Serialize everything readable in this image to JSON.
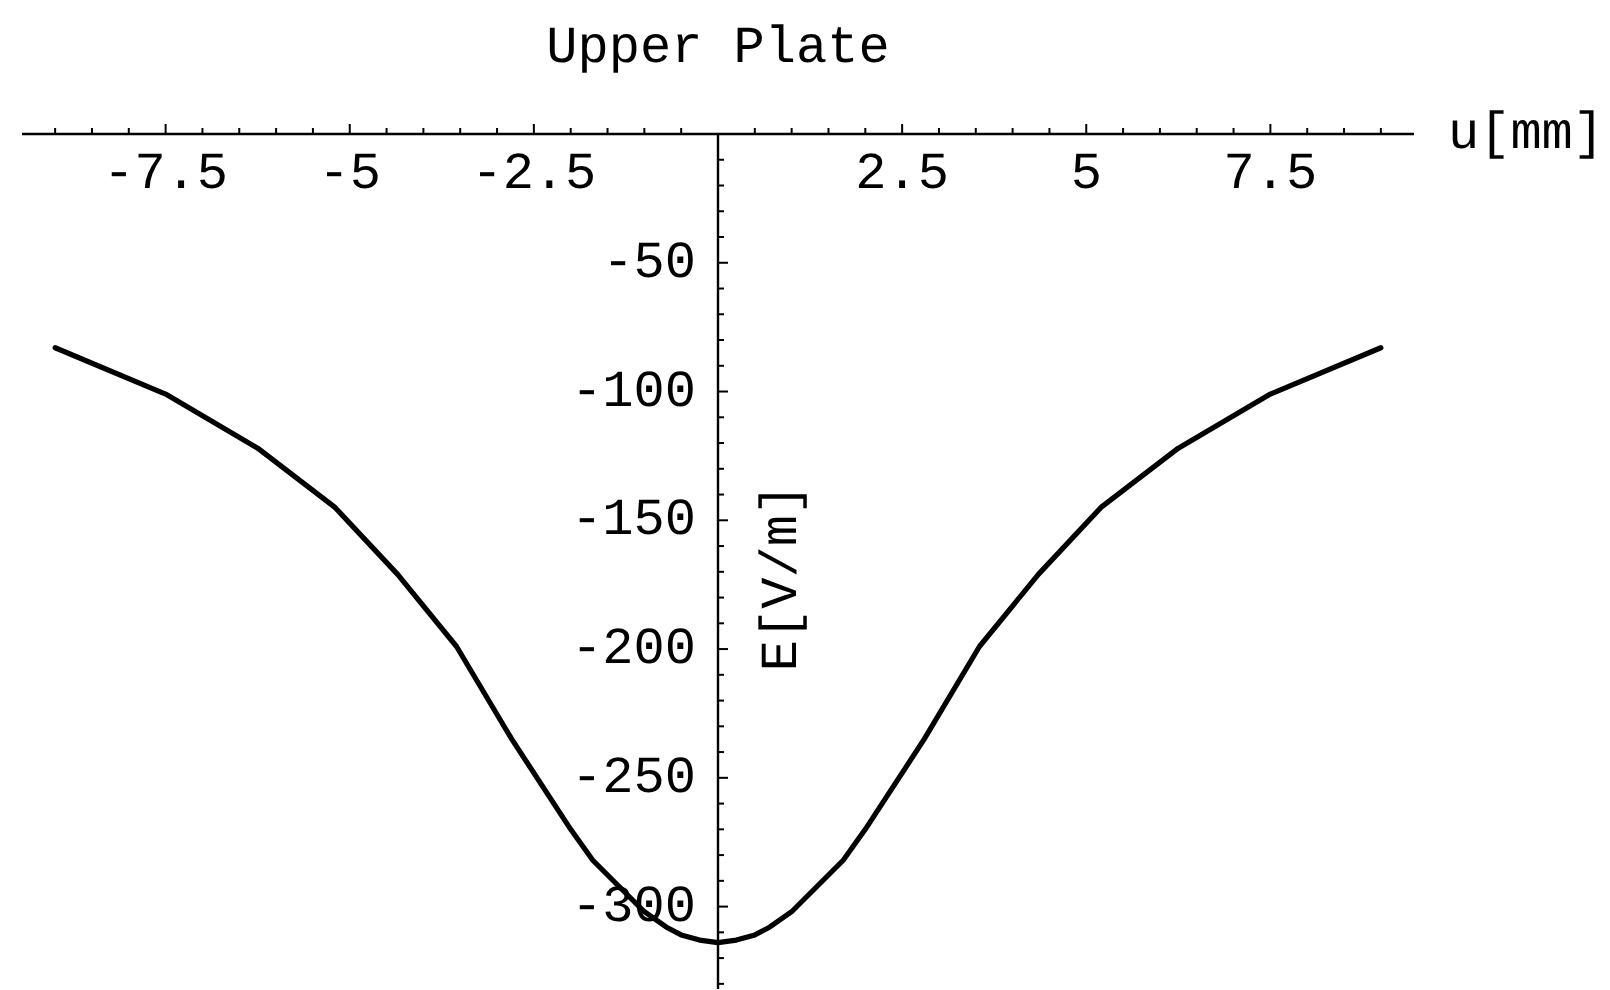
{
  "chart_data": {
    "type": "line",
    "title": "Upper Plate",
    "xlabel": "u[mm]",
    "ylabel": "E[V/m]",
    "x": [
      -9,
      -7.5,
      -6.25,
      -5.2,
      -4.35,
      -3.55,
      -2.8,
      -2.0,
      -1.7,
      -1.35,
      -1.0,
      -0.7,
      -0.5,
      -0.25,
      0,
      0.25,
      0.5,
      0.7,
      1.0,
      1.35,
      1.7,
      2.0,
      2.8,
      3.55,
      4.35,
      5.2,
      6.25,
      7.5,
      9
    ],
    "series": [
      {
        "color": "#000000",
        "values": [
          -83,
          -101,
          -122,
          -145,
          -171,
          -199,
          -235,
          -270,
          -282,
          -292,
          -302,
          -308,
          -311,
          -313,
          -314,
          -313,
          -311,
          -308,
          -302,
          -292,
          -282,
          -270,
          -235,
          -199,
          -171,
          -145,
          -122,
          -101,
          -83
        ]
      }
    ],
    "xlim": [
      -9.45,
      9.45
    ],
    "ylim": [
      -332,
      0
    ],
    "xticks": [
      {
        "value": -9,
        "label": null
      },
      {
        "value": -8.5,
        "label": null
      },
      {
        "value": -8,
        "label": null
      },
      -7.5,
      {
        "value": -7,
        "label": null
      },
      {
        "value": -6.5,
        "label": null
      },
      {
        "value": -6,
        "label": null
      },
      {
        "value": -5.5,
        "label": null
      },
      -5,
      {
        "value": -4.5,
        "label": null
      },
      {
        "value": -4,
        "label": null
      },
      {
        "value": -3.5,
        "label": null
      },
      {
        "value": -3,
        "label": null
      },
      -2.5,
      {
        "value": -2,
        "label": null
      },
      {
        "value": -1.5,
        "label": null
      },
      {
        "value": -1,
        "label": null
      },
      {
        "value": -0.5,
        "label": null
      },
      {
        "value": 0.5,
        "label": null
      },
      {
        "value": 1,
        "label": null
      },
      {
        "value": 1.5,
        "label": null
      },
      {
        "value": 2,
        "label": null
      },
      2.5,
      {
        "value": 3,
        "label": null
      },
      {
        "value": 3.5,
        "label": null
      },
      {
        "value": 4,
        "label": null
      },
      {
        "value": 4.5,
        "label": null
      },
      5,
      {
        "value": 5.5,
        "label": null
      },
      {
        "value": 6,
        "label": null
      },
      {
        "value": 6.5,
        "label": null
      },
      {
        "value": 7,
        "label": null
      },
      7.5,
      {
        "value": 8,
        "label": null
      },
      {
        "value": 8.5,
        "label": null
      },
      {
        "value": 9,
        "label": null
      }
    ],
    "yticks": [
      {
        "value": -10,
        "label": null
      },
      {
        "value": -20,
        "label": null
      },
      {
        "value": -30,
        "label": null
      },
      {
        "value": -40,
        "label": null
      },
      -50,
      {
        "value": -60,
        "label": null
      },
      {
        "value": -70,
        "label": null
      },
      {
        "value": -80,
        "label": null
      },
      {
        "value": -90,
        "label": null
      },
      -100,
      {
        "value": -110,
        "label": null
      },
      {
        "value": -120,
        "label": null
      },
      {
        "value": -130,
        "label": null
      },
      {
        "value": -140,
        "label": null
      },
      -150,
      {
        "value": -160,
        "label": null
      },
      {
        "value": -170,
        "label": null
      },
      {
        "value": -180,
        "label": null
      },
      {
        "value": -190,
        "label": null
      },
      -200,
      {
        "value": -210,
        "label": null
      },
      {
        "value": -220,
        "label": null
      },
      {
        "value": -230,
        "label": null
      },
      {
        "value": -240,
        "label": null
      },
      -250,
      {
        "value": -260,
        "label": null
      },
      {
        "value": -270,
        "label": null
      },
      {
        "value": -280,
        "label": null
      },
      {
        "value": -290,
        "label": null
      },
      -300,
      {
        "value": -310,
        "label": null
      },
      {
        "value": -320,
        "label": null
      },
      {
        "value": -330,
        "label": null
      }
    ],
    "line_style": "solid"
  }
}
